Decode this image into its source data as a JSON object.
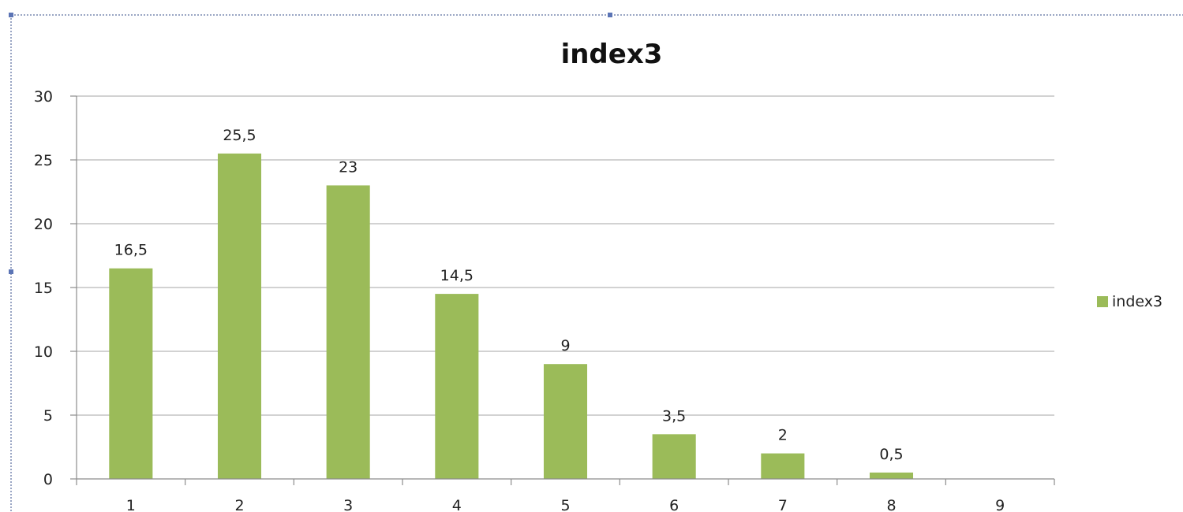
{
  "chart_data": {
    "type": "bar",
    "title": "index3",
    "xlabel": "",
    "ylabel": "",
    "categories": [
      "1",
      "2",
      "3",
      "4",
      "5",
      "6",
      "7",
      "8",
      "9"
    ],
    "series": [
      {
        "name": "index3",
        "values": [
          16.5,
          25.5,
          23,
          14.5,
          9,
          3.5,
          2,
          0.5,
          0
        ],
        "labels": [
          "16,5",
          "25,5",
          "23",
          "14,5",
          "9",
          "3,5",
          "2",
          "0,5",
          ""
        ]
      }
    ],
    "ylim": [
      0,
      30
    ],
    "yticks": [
      0,
      5,
      10,
      15,
      20,
      25,
      30
    ],
    "grid": true,
    "legend": "right",
    "colors": {
      "bar": "#9bbb59"
    }
  }
}
